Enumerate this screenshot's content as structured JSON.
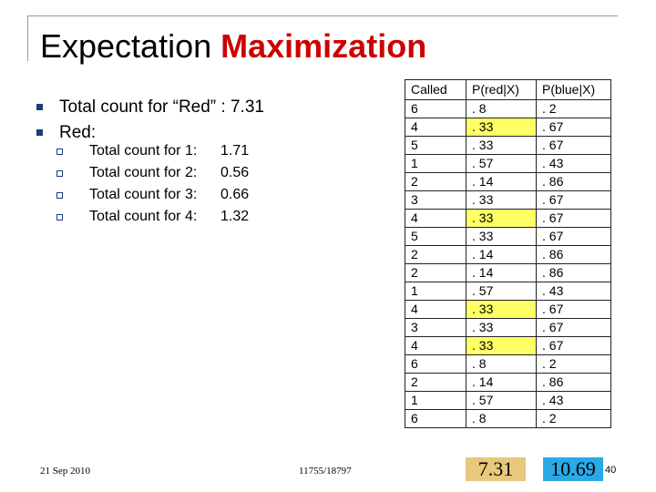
{
  "title": {
    "main": "Expectation",
    "accent": "Maximization"
  },
  "bullets": [
    {
      "text": "Total count for “Red” : 7.31"
    },
    {
      "text": "Red:"
    }
  ],
  "sub_bullets": [
    {
      "label": "Total count for 1:",
      "value": "1.71"
    },
    {
      "label": "Total count for 2:",
      "value": "0.56"
    },
    {
      "label": "Total count for 3:",
      "value": "0.66"
    },
    {
      "label": "Total count for 4:",
      "value": "1.32"
    }
  ],
  "table": {
    "headers": [
      "Called",
      "P(red|X)",
      "P(blue|X)"
    ],
    "highlight_color": "#ffff66",
    "rows": [
      {
        "called": "6",
        "red": ". 8",
        "blue": ". 2",
        "highlight": false
      },
      {
        "called": "4",
        "red": ". 33",
        "blue": ". 67",
        "highlight": true
      },
      {
        "called": "5",
        "red": ". 33",
        "blue": ". 67",
        "highlight": false
      },
      {
        "called": "1",
        "red": ". 57",
        "blue": ". 43",
        "highlight": false
      },
      {
        "called": "2",
        "red": ". 14",
        "blue": ". 86",
        "highlight": false
      },
      {
        "called": "3",
        "red": ". 33",
        "blue": ". 67",
        "highlight": false
      },
      {
        "called": "4",
        "red": ". 33",
        "blue": ". 67",
        "highlight": true
      },
      {
        "called": "5",
        "red": ". 33",
        "blue": ". 67",
        "highlight": false
      },
      {
        "called": "2",
        "red": ". 14",
        "blue": ". 86",
        "highlight": false
      },
      {
        "called": "2",
        "red": ". 14",
        "blue": ". 86",
        "highlight": false
      },
      {
        "called": "1",
        "red": ". 57",
        "blue": ". 43",
        "highlight": false
      },
      {
        "called": "4",
        "red": ". 33",
        "blue": ". 67",
        "highlight": true
      },
      {
        "called": "3",
        "red": ". 33",
        "blue": ". 67",
        "highlight": false
      },
      {
        "called": "4",
        "red": ". 33",
        "blue": ". 67",
        "highlight": true
      },
      {
        "called": "6",
        "red": ". 8",
        "blue": ". 2",
        "highlight": false
      },
      {
        "called": "2",
        "red": ". 14",
        "blue": ". 86",
        "highlight": false
      },
      {
        "called": "1",
        "red": ". 57",
        "blue": ". 43",
        "highlight": false
      },
      {
        "called": "6",
        "red": ". 8",
        "blue": ". 2",
        "highlight": false
      }
    ]
  },
  "totals": {
    "red": "7.31",
    "blue": "10.69",
    "red_color": "#e8c87c",
    "blue_color": "#2aa9e8"
  },
  "footer": {
    "date": "21 Sep 2010",
    "course": "11755/18797",
    "page": "40"
  }
}
